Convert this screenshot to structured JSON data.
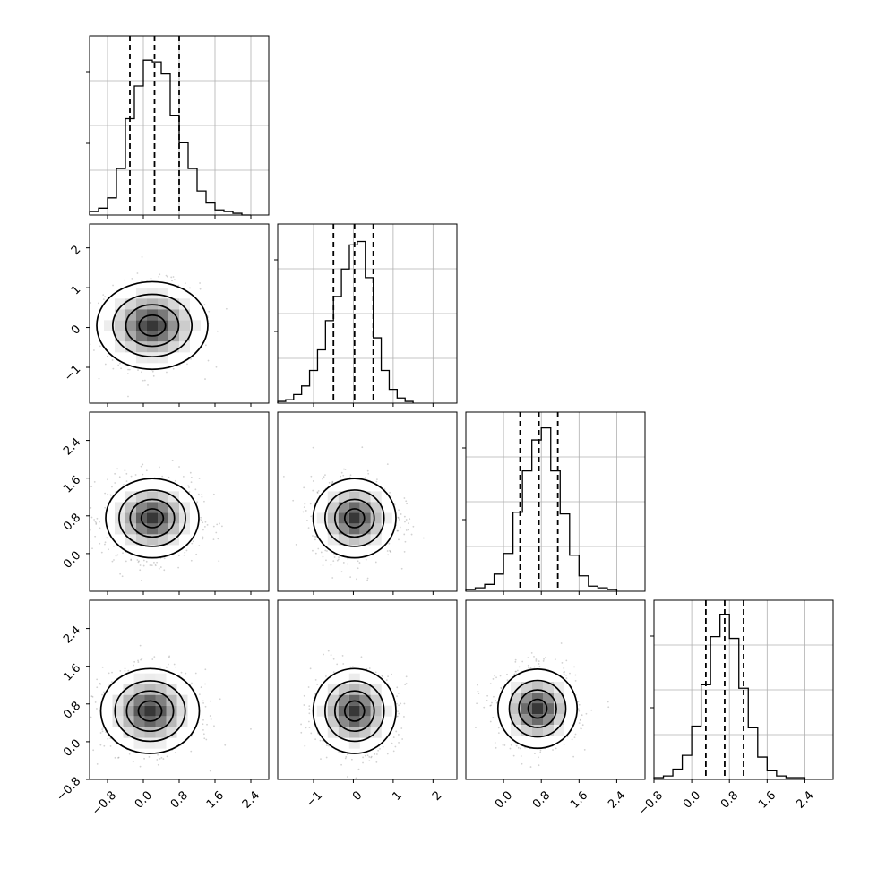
{
  "chart_data": {
    "type": "corner",
    "description_free": true,
    "variables": [
      {
        "id": "p0",
        "range": [
          -1.2,
          2.8
        ],
        "ticks": [
          -0.8,
          0.0,
          0.8,
          1.6,
          2.4
        ],
        "tick_labels": [
          "−0.8",
          "0.0",
          "0.8",
          "1.6",
          "2.4"
        ],
        "median": 0.25,
        "q16": -0.3,
        "q84": 0.8,
        "std": 0.5
      },
      {
        "id": "p1",
        "range": [
          -1.9,
          2.6
        ],
        "ticks": [
          -1,
          0,
          1,
          2
        ],
        "tick_labels": [
          "−1",
          "0",
          "1",
          "2"
        ],
        "median": 0.03,
        "q16": -0.5,
        "q84": 0.5,
        "std": 0.5
      },
      {
        "id": "p2",
        "range": [
          -0.8,
          3.0
        ],
        "ticks": [
          0.0,
          0.8,
          1.6,
          2.4
        ],
        "tick_labels": [
          "0.0",
          "0.8",
          "1.6",
          "2.4"
        ],
        "median": 0.75,
        "q16": 0.35,
        "q84": 1.15,
        "std": 0.4
      },
      {
        "id": "p3",
        "range": [
          -0.8,
          3.0
        ],
        "ticks": [
          -0.8,
          0.0,
          0.8,
          1.6,
          2.4
        ],
        "tick_labels": [
          "−0.8",
          "0.0",
          "0.8",
          "1.6",
          "2.4"
        ],
        "median": 0.7,
        "q16": 0.3,
        "q84": 1.1,
        "std": 0.4
      }
    ],
    "histograms": [
      {
        "var": "p0",
        "bin_edges": [
          -1.2,
          -1.0,
          -0.8,
          -0.6,
          -0.4,
          -0.2,
          0.0,
          0.2,
          0.4,
          0.6,
          0.8,
          1.0,
          1.2,
          1.4,
          1.6,
          1.8,
          2.0,
          2.2,
          2.4
        ],
        "counts": [
          0.02,
          0.04,
          0.1,
          0.27,
          0.56,
          0.75,
          0.9,
          0.89,
          0.82,
          0.58,
          0.42,
          0.27,
          0.14,
          0.07,
          0.03,
          0.02,
          0.01,
          0.0
        ]
      },
      {
        "var": "p1",
        "bin_edges": [
          -1.9,
          -1.7,
          -1.5,
          -1.3,
          -1.1,
          -0.9,
          -0.7,
          -0.5,
          -0.3,
          -0.1,
          0.1,
          0.3,
          0.5,
          0.7,
          0.9,
          1.1,
          1.3,
          1.5
        ],
        "counts": [
          0.01,
          0.02,
          0.05,
          0.1,
          0.19,
          0.31,
          0.48,
          0.62,
          0.78,
          0.92,
          0.94,
          0.73,
          0.38,
          0.19,
          0.08,
          0.03,
          0.01
        ]
      },
      {
        "var": "p2",
        "bin_edges": [
          -0.8,
          -0.6,
          -0.4,
          -0.2,
          0.0,
          0.2,
          0.4,
          0.6,
          0.8,
          1.0,
          1.2,
          1.4,
          1.6,
          1.8,
          2.0,
          2.2,
          2.4
        ],
        "counts": [
          0.01,
          0.02,
          0.04,
          0.1,
          0.22,
          0.46,
          0.7,
          0.88,
          0.95,
          0.7,
          0.45,
          0.21,
          0.09,
          0.03,
          0.02,
          0.01
        ]
      },
      {
        "var": "p3",
        "bin_edges": [
          -0.8,
          -0.6,
          -0.4,
          -0.2,
          0.0,
          0.2,
          0.4,
          0.6,
          0.8,
          1.0,
          1.2,
          1.4,
          1.6,
          1.8,
          2.0,
          2.2,
          2.4
        ],
        "counts": [
          0.01,
          0.02,
          0.06,
          0.14,
          0.31,
          0.55,
          0.83,
          0.96,
          0.82,
          0.53,
          0.3,
          0.13,
          0.05,
          0.02,
          0.01,
          0.01
        ]
      }
    ],
    "pairs": [
      {
        "x": "p0",
        "y": "p1",
        "cx": 0.2,
        "cy": 0.05,
        "rx": 0.62,
        "ry": 0.55
      },
      {
        "x": "p0",
        "y": "p2",
        "cx": 0.2,
        "cy": 0.75,
        "rx": 0.52,
        "ry": 0.42
      },
      {
        "x": "p1",
        "y": "p2",
        "cx": 0.03,
        "cy": 0.75,
        "rx": 0.52,
        "ry": 0.42
      },
      {
        "x": "p0",
        "y": "p3",
        "cx": 0.15,
        "cy": 0.65,
        "rx": 0.55,
        "ry": 0.45
      },
      {
        "x": "p1",
        "y": "p3",
        "cx": 0.03,
        "cy": 0.65,
        "rx": 0.52,
        "ry": 0.45
      },
      {
        "x": "p2",
        "y": "p3",
        "cx": 0.72,
        "cy": 0.7,
        "rx": 0.42,
        "ry": 0.42
      }
    ],
    "contour_levels": [
      0.5,
      1.0,
      1.5,
      2.0
    ],
    "quantiles": [
      0.16,
      0.5,
      0.84
    ],
    "grid": true,
    "colors": {
      "frame": "#000000",
      "grid": "#b0b0b0",
      "points": "#000000",
      "density": "#000000"
    }
  }
}
